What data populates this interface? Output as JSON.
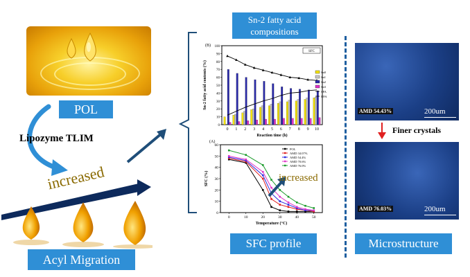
{
  "labels": {
    "pol": "POL",
    "lipozyme": "Lipozyme TLIM",
    "increased_left": "increased",
    "acyl_migration": "Acyl  Migration",
    "sn2_title": "Sn-2 fatty acid compositions",
    "sfc_profile": "SFC profile",
    "microstructure": "Microstructure",
    "finer_crystals": "Finer crystals",
    "increased_chart": "increased"
  },
  "micro": {
    "top_label": "AMD 54.43%",
    "top_scale": "200um",
    "bottom_label": "AMD 76.03%",
    "bottom_scale": "200um"
  },
  "colors": {
    "blue_box": "#2f8fd6",
    "arrow": "#1f4e79",
    "micro_bg": "#1b3f86",
    "red_arrow": "#e02020"
  },
  "chart_data": [
    {
      "type": "bar",
      "panel": "(B)",
      "corner_label": "SFC",
      "xlabel": "Reaction time (h)",
      "ylabel": "Sn-2 fatty acid contents (%)",
      "ylim": [
        0,
        100
      ],
      "yticks": [
        0,
        10,
        20,
        30,
        40,
        50,
        60,
        70,
        80,
        90,
        100
      ],
      "categories": [
        "0",
        "1",
        "2",
        "3",
        "4",
        "5",
        "6",
        "7",
        "8",
        "9",
        "10"
      ],
      "series": [
        {
          "name": "Sn0",
          "color": "#f5e400",
          "values": [
            10,
            12,
            15,
            19,
            22,
            24,
            27,
            29,
            30,
            32,
            34
          ]
        },
        {
          "name": "Sn1",
          "color": "#c8c8c8",
          "values": [
            0,
            13,
            17,
            20,
            24,
            26,
            29,
            31,
            32,
            34,
            35
          ]
        },
        {
          "name": "Sn2",
          "color": "#2a2aa8",
          "values": [
            70,
            65,
            60,
            57,
            55,
            52,
            48,
            46,
            45,
            44,
            43
          ]
        },
        {
          "name": "Sn3",
          "color": "#e033c8",
          "values": [
            3,
            4,
            5,
            6,
            7,
            7,
            8,
            8,
            8,
            8,
            9
          ]
        }
      ],
      "lines": [
        {
          "name": "SFA",
          "color": "#000000",
          "marker": "triangle",
          "values": [
            87,
            82,
            76,
            72,
            69,
            66,
            63,
            60,
            59,
            57,
            56
          ]
        },
        {
          "name": "UFA",
          "color": "#000000",
          "marker": "none",
          "values": [
            12,
            17,
            22,
            26,
            30,
            33,
            37,
            40,
            41,
            43,
            44
          ]
        }
      ]
    },
    {
      "type": "line",
      "panel": "(A)",
      "xlabel": "Temperature (°C)",
      "ylabel": "SFC (%)",
      "xlim": [
        -5,
        55
      ],
      "ylim": [
        0,
        60
      ],
      "xticks": [
        0,
        10,
        20,
        30,
        40,
        50
      ],
      "yticks": [
        0,
        10,
        20,
        30,
        40,
        50,
        60
      ],
      "x": [
        0,
        10,
        20,
        25,
        30,
        35,
        40,
        45,
        50
      ],
      "series": [
        {
          "name": "POL",
          "color": "#000000",
          "values": [
            47,
            44,
            20,
            5,
            2,
            1,
            1,
            1,
            1
          ]
        },
        {
          "name": "AMD 34.07%",
          "color": "#e02020",
          "values": [
            48,
            45,
            30,
            12,
            7,
            5,
            3,
            2,
            1
          ]
        },
        {
          "name": "AMD 54.4%",
          "color": "#2a2ae0",
          "values": [
            49,
            46,
            33,
            17,
            10,
            7,
            4,
            2,
            2
          ]
        },
        {
          "name": "AMD 70.6%",
          "color": "#e033c8",
          "values": [
            50,
            47,
            36,
            22,
            14,
            9,
            5,
            3,
            2
          ]
        },
        {
          "name": "AMD 76.0%",
          "color": "#1a9a2a",
          "values": [
            55,
            51,
            42,
            29,
            20,
            14,
            9,
            6,
            4
          ]
        }
      ]
    }
  ]
}
